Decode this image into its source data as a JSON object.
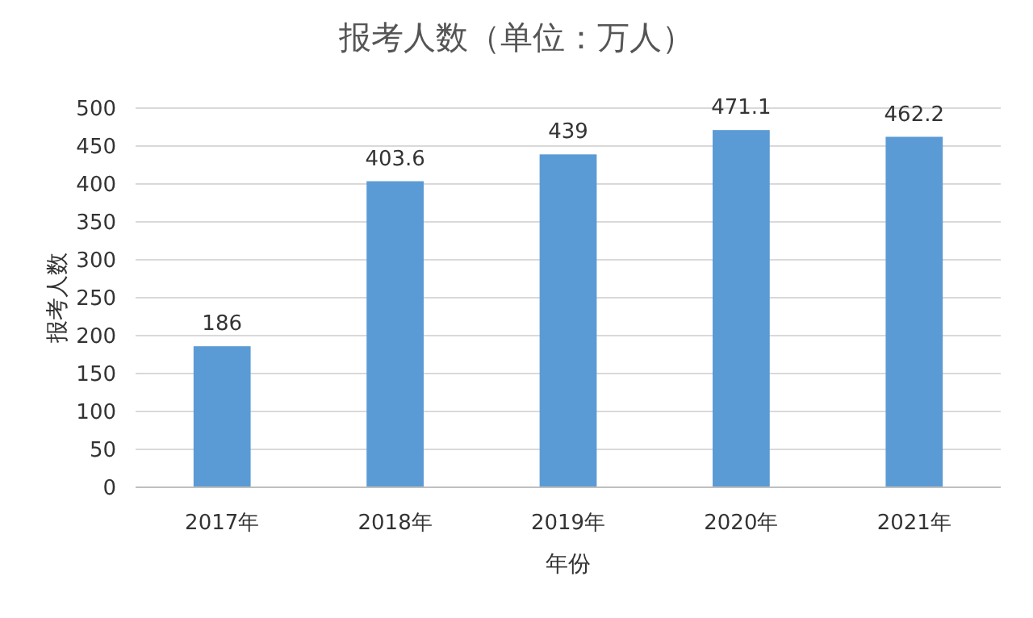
{
  "chart_data": {
    "type": "bar",
    "title": "报考人数（单位：万人）",
    "xlabel": "年份",
    "ylabel": "报考人数",
    "categories": [
      "2017年",
      "2018年",
      "2019年",
      "2020年",
      "2021年"
    ],
    "values": [
      186,
      403.6,
      439,
      471.1,
      462.2
    ],
    "color": "#5b9bd5",
    "ylim": [
      0,
      500
    ],
    "yticks": [
      0,
      50,
      100,
      150,
      200,
      250,
      300,
      350,
      400,
      450,
      500
    ],
    "grid": "y",
    "data_labels": true
  }
}
